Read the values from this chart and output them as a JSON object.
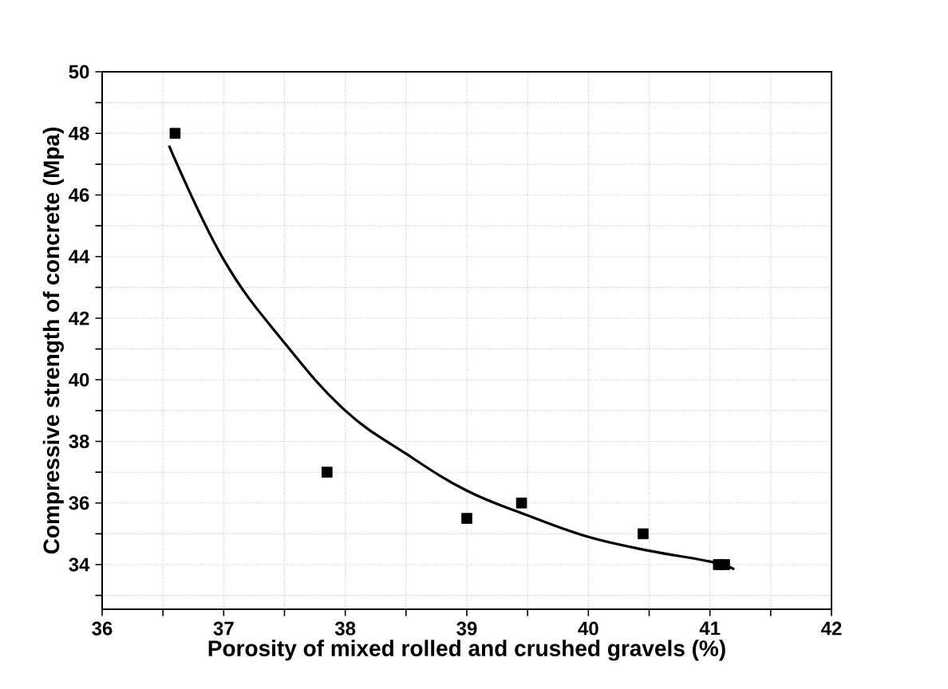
{
  "chart_data": {
    "type": "scatter",
    "xlabel": "Porosity of mixed rolled and crushed gravels (%)",
    "ylabel": "Compressive strength of concrete (Mpa)",
    "xlim": [
      36,
      42
    ],
    "ylim": [
      32.55,
      50
    ],
    "xticks": [
      36,
      {
        "value": 36.5,
        "label": null
      },
      37,
      {
        "value": 37.5,
        "label": null
      },
      38,
      {
        "value": 38.5,
        "label": null
      },
      39,
      {
        "value": 39.5,
        "label": null
      },
      40,
      {
        "value": 40.5,
        "label": null
      },
      41,
      {
        "value": 41.5,
        "label": null
      },
      42
    ],
    "yticks": [
      {
        "value": 33,
        "label": null
      },
      34,
      {
        "value": 35,
        "label": null
      },
      36,
      {
        "value": 37,
        "label": null
      },
      38,
      {
        "value": 39,
        "label": null
      },
      40,
      {
        "value": 41,
        "label": null
      },
      42,
      {
        "value": 43,
        "label": null
      },
      44,
      {
        "value": 45,
        "label": null
      },
      46,
      {
        "value": 47,
        "label": null
      },
      48,
      {
        "value": 49,
        "label": null
      },
      50
    ],
    "grid": true,
    "series": [
      {
        "color": "#000000",
        "marker": "square",
        "x": [
          36.6,
          37.85,
          39.0,
          39.45,
          40.45,
          41.07,
          41.12
        ],
        "values": [
          48,
          37,
          35.5,
          36,
          35,
          34,
          34
        ]
      },
      {
        "type": "line",
        "color": "#000000",
        "marker": "none",
        "line_style": "solid",
        "x": [
          36.55,
          37.0,
          37.5,
          38.0,
          38.5,
          39.0,
          39.5,
          40.0,
          40.5,
          41.0,
          41.2
        ],
        "values": [
          47.6,
          43.9,
          41.2,
          39.0,
          37.6,
          36.4,
          35.6,
          34.9,
          34.45,
          34.1,
          33.85
        ]
      }
    ]
  }
}
